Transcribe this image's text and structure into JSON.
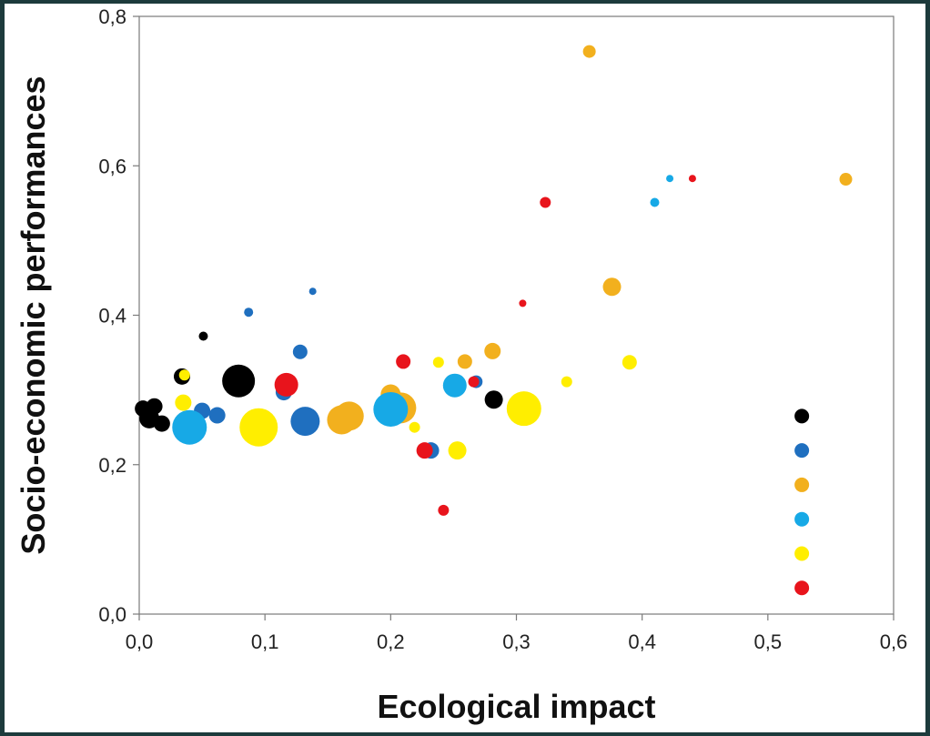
{
  "chart_data": {
    "type": "scatter",
    "xlabel": "Ecological impact",
    "ylabel": "Socio-economic performances",
    "xlim": [
      0.0,
      0.6
    ],
    "ylim": [
      0.0,
      0.8
    ],
    "x_ticks": [
      "0,0",
      "0,1",
      "0,2",
      "0,3",
      "0,4",
      "0,5",
      "0,6"
    ],
    "y_ticks": [
      "0,0",
      "0,2",
      "0,4",
      "0,6",
      "0,8"
    ],
    "grid": false,
    "legend_position": "bottom-right",
    "colors": {
      "black": "#000000",
      "dark_blue": "#1f6fbf",
      "orange": "#f2b01e",
      "light_blue": "#17a9e6",
      "yellow": "#ffee00",
      "red": "#e8141c"
    },
    "legend": [
      {
        "color": "#000000",
        "y": 0.265
      },
      {
        "color": "#1f6fbf",
        "y": 0.219
      },
      {
        "color": "#f2b01e",
        "y": 0.173
      },
      {
        "color": "#17a9e6",
        "y": 0.127
      },
      {
        "color": "#ffee00",
        "y": 0.081
      },
      {
        "color": "#e8141c",
        "y": 0.035
      }
    ],
    "points": [
      {
        "x": 0.003,
        "y": 0.275,
        "size": 9,
        "color": "#000000"
      },
      {
        "x": 0.008,
        "y": 0.262,
        "size": 11,
        "color": "#000000"
      },
      {
        "x": 0.012,
        "y": 0.278,
        "size": 9,
        "color": "#000000"
      },
      {
        "x": 0.018,
        "y": 0.255,
        "size": 9,
        "color": "#000000"
      },
      {
        "x": 0.034,
        "y": 0.318,
        "size": 9,
        "color": "#000000"
      },
      {
        "x": 0.051,
        "y": 0.372,
        "size": 5,
        "color": "#000000"
      },
      {
        "x": 0.079,
        "y": 0.312,
        "size": 18,
        "color": "#000000"
      },
      {
        "x": 0.282,
        "y": 0.287,
        "size": 10,
        "color": "#000000"
      },
      {
        "x": 0.05,
        "y": 0.272,
        "size": 9,
        "color": "#1f6fbf"
      },
      {
        "x": 0.062,
        "y": 0.266,
        "size": 9,
        "color": "#1f6fbf"
      },
      {
        "x": 0.087,
        "y": 0.404,
        "size": 5,
        "color": "#1f6fbf"
      },
      {
        "x": 0.115,
        "y": 0.297,
        "size": 9,
        "color": "#1f6fbf"
      },
      {
        "x": 0.128,
        "y": 0.351,
        "size": 8,
        "color": "#1f6fbf"
      },
      {
        "x": 0.132,
        "y": 0.258,
        "size": 16,
        "color": "#1f6fbf"
      },
      {
        "x": 0.138,
        "y": 0.432,
        "size": 4,
        "color": "#1f6fbf"
      },
      {
        "x": 0.232,
        "y": 0.219,
        "size": 9,
        "color": "#1f6fbf"
      },
      {
        "x": 0.268,
        "y": 0.311,
        "size": 7,
        "color": "#1f6fbf"
      },
      {
        "x": 0.161,
        "y": 0.26,
        "size": 16,
        "color": "#f2b01e"
      },
      {
        "x": 0.167,
        "y": 0.265,
        "size": 16,
        "color": "#f2b01e"
      },
      {
        "x": 0.2,
        "y": 0.294,
        "size": 11,
        "color": "#f2b01e"
      },
      {
        "x": 0.208,
        "y": 0.276,
        "size": 17,
        "color": "#f2b01e"
      },
      {
        "x": 0.259,
        "y": 0.338,
        "size": 8,
        "color": "#f2b01e"
      },
      {
        "x": 0.281,
        "y": 0.352,
        "size": 9,
        "color": "#f2b01e"
      },
      {
        "x": 0.358,
        "y": 0.753,
        "size": 7,
        "color": "#f2b01e"
      },
      {
        "x": 0.376,
        "y": 0.438,
        "size": 10,
        "color": "#f2b01e"
      },
      {
        "x": 0.562,
        "y": 0.582,
        "size": 7,
        "color": "#f2b01e"
      },
      {
        "x": 0.04,
        "y": 0.25,
        "size": 19,
        "color": "#17a9e6"
      },
      {
        "x": 0.2,
        "y": 0.274,
        "size": 19,
        "color": "#17a9e6"
      },
      {
        "x": 0.251,
        "y": 0.306,
        "size": 13,
        "color": "#17a9e6"
      },
      {
        "x": 0.41,
        "y": 0.551,
        "size": 5,
        "color": "#17a9e6"
      },
      {
        "x": 0.422,
        "y": 0.583,
        "size": 4,
        "color": "#17a9e6"
      },
      {
        "x": 0.036,
        "y": 0.32,
        "size": 6,
        "color": "#ffee00"
      },
      {
        "x": 0.035,
        "y": 0.283,
        "size": 9,
        "color": "#ffee00"
      },
      {
        "x": 0.095,
        "y": 0.25,
        "size": 21,
        "color": "#ffee00"
      },
      {
        "x": 0.219,
        "y": 0.25,
        "size": 6,
        "color": "#ffee00"
      },
      {
        "x": 0.238,
        "y": 0.337,
        "size": 6,
        "color": "#ffee00"
      },
      {
        "x": 0.253,
        "y": 0.219,
        "size": 10,
        "color": "#ffee00"
      },
      {
        "x": 0.306,
        "y": 0.275,
        "size": 19,
        "color": "#ffee00"
      },
      {
        "x": 0.34,
        "y": 0.311,
        "size": 6,
        "color": "#ffee00"
      },
      {
        "x": 0.39,
        "y": 0.337,
        "size": 8,
        "color": "#ffee00"
      },
      {
        "x": 0.117,
        "y": 0.307,
        "size": 13,
        "color": "#e8141c"
      },
      {
        "x": 0.21,
        "y": 0.338,
        "size": 8,
        "color": "#e8141c"
      },
      {
        "x": 0.227,
        "y": 0.219,
        "size": 9,
        "color": "#e8141c"
      },
      {
        "x": 0.242,
        "y": 0.139,
        "size": 6,
        "color": "#e8141c"
      },
      {
        "x": 0.266,
        "y": 0.311,
        "size": 6,
        "color": "#e8141c"
      },
      {
        "x": 0.305,
        "y": 0.416,
        "size": 4,
        "color": "#e8141c"
      },
      {
        "x": 0.323,
        "y": 0.551,
        "size": 6,
        "color": "#e8141c"
      },
      {
        "x": 0.44,
        "y": 0.583,
        "size": 4,
        "color": "#e8141c"
      }
    ]
  }
}
